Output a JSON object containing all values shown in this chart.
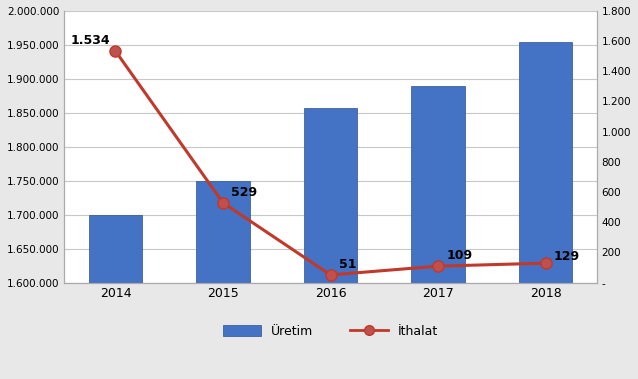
{
  "years": [
    2014,
    2015,
    2016,
    2017,
    2018
  ],
  "production": [
    1700000,
    1750000,
    1857000,
    1890000,
    1955000
  ],
  "import": [
    1534,
    529,
    51,
    109,
    129
  ],
  "import_labels": [
    "1.534",
    "529",
    "51",
    "109",
    "129"
  ],
  "bar_color": "#4472C4",
  "bar_edgecolor": "#2F528F",
  "line_color": "#C0392B",
  "marker_color": "#C0392B",
  "marker_face": "#C0504D",
  "left_ylim": [
    1600000,
    2000000
  ],
  "left_yticks": [
    1600000,
    1650000,
    1700000,
    1750000,
    1800000,
    1850000,
    1900000,
    1950000,
    2000000
  ],
  "right_ylim": [
    0,
    1800
  ],
  "right_yticks": [
    0,
    200,
    400,
    600,
    800,
    1000,
    1200,
    1400,
    1600,
    1800
  ],
  "right_yticklabels": [
    "-",
    "200",
    "400",
    "600",
    "800",
    "1.000",
    "1.200",
    "1.400",
    "1.600",
    "1.800"
  ],
  "left_yticklabels": [
    "1.600.000",
    "1.650.000",
    "1.700.000",
    "1.750.000",
    "1.800.000",
    "1.850.000",
    "1.900.000",
    "1.950.000",
    "2.000.000"
  ],
  "legend_labels": [
    "Üretim",
    "İthalat"
  ],
  "background_color": "#E8E8E8",
  "plot_bg_color": "#FFFFFF",
  "grid_color": "#C8C8C8",
  "bar_width": 0.5,
  "figsize": [
    6.38,
    3.79
  ],
  "dpi": 100
}
